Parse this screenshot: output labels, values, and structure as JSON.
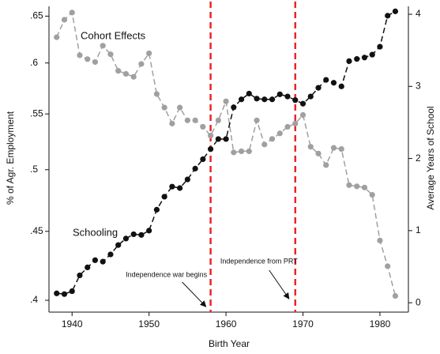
{
  "chart_data": {
    "type": "line",
    "xlabel": "Birth Year",
    "ylabel": "% of Agr. Employment",
    "y2label": "Average Years of School",
    "x": [
      1938,
      1939,
      1940,
      1941,
      1942,
      1943,
      1944,
      1945,
      1946,
      1947,
      1948,
      1949,
      1950,
      1951,
      1952,
      1953,
      1954,
      1955,
      1956,
      1957,
      1958,
      1959,
      1960,
      1961,
      1962,
      1963,
      1964,
      1965,
      1966,
      1967,
      1968,
      1969,
      1970,
      1971,
      1972,
      1973,
      1974,
      1975,
      1976,
      1977,
      1978,
      1979,
      1980,
      1981,
      1982
    ],
    "series": [
      {
        "name": "Cohort Effects",
        "color": "#a0a0a0",
        "axis": "y",
        "values": [
          0.627,
          0.646,
          0.654,
          0.608,
          0.604,
          0.601,
          0.618,
          0.609,
          0.592,
          0.589,
          0.586,
          0.599,
          0.61,
          0.569,
          0.556,
          0.541,
          0.556,
          0.544,
          0.544,
          0.538,
          0.53,
          0.544,
          0.562,
          0.515,
          0.516,
          0.516,
          0.544,
          0.522,
          0.527,
          0.532,
          0.538,
          0.541,
          0.549,
          0.52,
          0.514,
          0.504,
          0.519,
          0.518,
          0.487,
          0.486,
          0.485,
          0.479,
          0.443,
          0.424,
          0.403
        ]
      },
      {
        "name": "Schooling",
        "color": "#111111",
        "axis": "y2",
        "values": [
          0.13,
          0.12,
          0.16,
          0.38,
          0.49,
          0.59,
          0.57,
          0.67,
          0.8,
          0.89,
          0.95,
          0.94,
          1.0,
          1.29,
          1.47,
          1.61,
          1.59,
          1.71,
          1.86,
          1.99,
          2.13,
          2.27,
          2.27,
          2.71,
          2.82,
          2.9,
          2.83,
          2.82,
          2.82,
          2.89,
          2.86,
          2.81,
          2.76,
          2.86,
          2.98,
          3.09,
          3.05,
          3.0,
          3.35,
          3.38,
          3.4,
          3.44,
          3.55,
          3.98,
          4.04
        ]
      }
    ],
    "xlim": [
      1937,
      1983.7
    ],
    "xticks": [
      1940,
      1950,
      1960,
      1970,
      1980
    ],
    "ylim": [
      0.392,
      0.661
    ],
    "ylog": true,
    "yticks": [
      {
        "value": 0.4,
        "label": ".4"
      },
      {
        "value": 0.45,
        "label": ".45"
      },
      {
        "value": 0.5,
        "label": ".5"
      },
      {
        "value": 0.55,
        "label": ".55"
      },
      {
        "value": 0.6,
        "label": ".6"
      },
      {
        "value": 0.65,
        "label": ".65"
      }
    ],
    "y2lim": [
      -0.13,
      4.11
    ],
    "y2ticks": [
      0,
      1,
      2,
      3,
      4
    ],
    "vlines": [
      1958,
      1969
    ],
    "vline_color": "#e8262a",
    "annotations": [
      {
        "text": "Independence war begins",
        "x": 1958
      },
      {
        "text": "Independence from PRT",
        "x": 1969
      }
    ]
  }
}
